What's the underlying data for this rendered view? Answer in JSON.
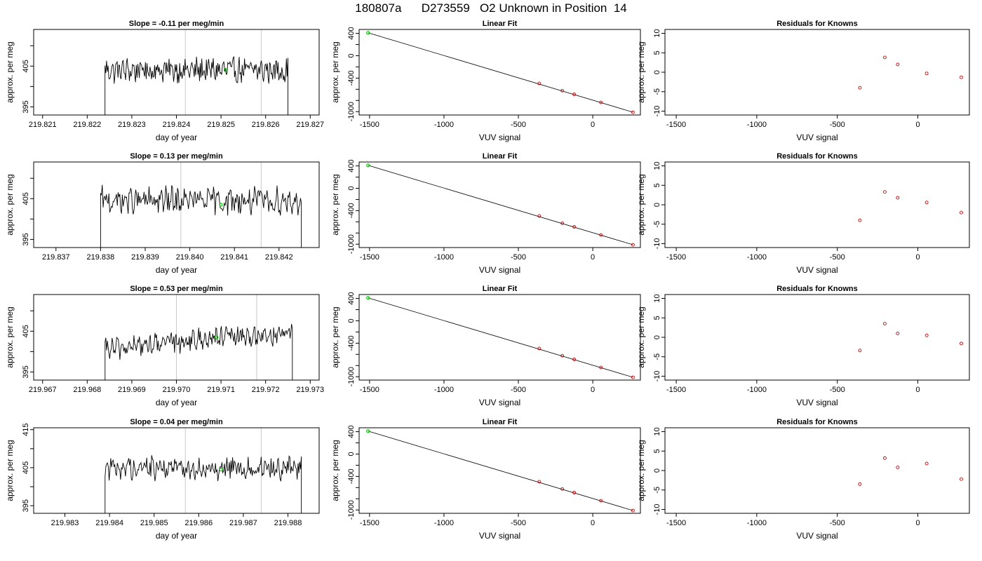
{
  "title": "180807a      D273559   O2 Unknown in Position  14",
  "colors": {
    "trace": "#000000",
    "vline": "#c8c8c8",
    "unknown_point": "#00cc00",
    "known_point": "#cc0000",
    "fit_line": "#000000",
    "frame": "#000000"
  },
  "chart_data": [
    {
      "type": "line",
      "panel": "timeseries",
      "row": 0,
      "title": "Slope =  -0.11  per meg/min",
      "xlabel": "day of year",
      "ylabel": "approx. per meg",
      "xlim": [
        219.8208,
        219.8272
      ],
      "ylim": [
        393,
        414
      ],
      "xticks": [
        219.821,
        219.822,
        219.823,
        219.824,
        219.825,
        219.826,
        219.827
      ],
      "xtick_labels": [
        "219.821",
        "219.822",
        "219.823",
        "219.824",
        "219.825",
        "219.826",
        "219.827"
      ],
      "yticks": [
        395,
        400,
        405,
        410
      ],
      "ytick_labels": [
        "395",
        "",
        "405",
        ""
      ],
      "trace_start": 219.8224,
      "trace_end": 219.8265,
      "trace_mean": 404,
      "trace_amp": 2.6,
      "trace_rise": 0,
      "vlines": [
        219.8242,
        219.8259
      ],
      "unknown_point": {
        "x": 219.8251,
        "y": 404
      }
    },
    {
      "type": "line",
      "panel": "fit",
      "row": 0,
      "title": "Linear Fit",
      "xlabel": "VUV signal",
      "ylabel": "approx. per meg",
      "xlim": [
        -1570,
        320
      ],
      "ylim": [
        -1060,
        470
      ],
      "xticks": [
        -1500,
        -1000,
        -500,
        0
      ],
      "xtick_labels": [
        "-1500",
        "-1000",
        "-500",
        "0"
      ],
      "yticks": [
        400,
        200,
        0,
        -200,
        -400,
        -600,
        -800,
        -1000
      ],
      "ytick_labels": [
        "400",
        "",
        "0",
        "",
        "-400",
        "",
        "",
        "-1000"
      ],
      "fit_line": {
        "x": [
          -1510,
          270
        ],
        "y": [
          410,
          -1010
        ]
      },
      "knowns": {
        "x": [
          -360,
          -205,
          -125,
          55,
          270
        ],
        "y": [
          -495,
          -625,
          -690,
          -835,
          -1010
        ]
      },
      "unknown": {
        "x": -1510,
        "y": 410
      }
    },
    {
      "type": "scatter",
      "panel": "residuals",
      "row": 0,
      "title": "Residuals for Knowns",
      "xlabel": "VUV signal",
      "ylabel": "approx. per meg",
      "xlim": [
        -1570,
        320
      ],
      "ylim": [
        -11,
        11
      ],
      "xticks": [
        -1500,
        -1000,
        -500,
        0
      ],
      "xtick_labels": [
        "-1500",
        "-1000",
        "-500",
        "0"
      ],
      "yticks": [
        -10,
        -5,
        0,
        5,
        10
      ],
      "ytick_labels": [
        "-10",
        "-5",
        "0",
        "5",
        "10"
      ],
      "knowns": {
        "x": [
          -360,
          -205,
          -125,
          55,
          270
        ],
        "y": [
          -4.0,
          3.8,
          2.0,
          -0.3,
          -1.3
        ]
      }
    },
    {
      "type": "line",
      "panel": "timeseries",
      "row": 1,
      "title": "Slope =  0.13  per meg/min",
      "xlabel": "day of year",
      "ylabel": "approx. per meg",
      "xlim": [
        219.8365,
        219.8429
      ],
      "ylim": [
        393,
        414
      ],
      "xticks": [
        219.837,
        219.838,
        219.839,
        219.84,
        219.841,
        219.842
      ],
      "xtick_labels": [
        "219.837",
        "219.838",
        "219.839",
        "219.840",
        "219.841",
        "219.842"
      ],
      "yticks": [
        395,
        400,
        405,
        410
      ],
      "ytick_labels": [
        "395",
        "",
        "405",
        ""
      ],
      "trace_start": 219.838,
      "trace_end": 219.8425,
      "trace_mean": 404.5,
      "trace_amp": 2.8,
      "trace_rise": 0,
      "vlines": [
        219.8398,
        219.8416
      ],
      "unknown_point": {
        "x": 219.8407,
        "y": 403.5
      }
    },
    {
      "type": "line",
      "panel": "fit",
      "row": 1,
      "title": "Linear Fit",
      "xlabel": "VUV signal",
      "ylabel": "approx. per meg",
      "xlim": [
        -1570,
        320
      ],
      "ylim": [
        -1060,
        470
      ],
      "xticks": [
        -1500,
        -1000,
        -500,
        0
      ],
      "xtick_labels": [
        "-1500",
        "-1000",
        "-500",
        "0"
      ],
      "yticks": [
        400,
        200,
        0,
        -200,
        -400,
        -600,
        -800,
        -1000
      ],
      "ytick_labels": [
        "400",
        "",
        "0",
        "",
        "-400",
        "",
        "",
        "-1000"
      ],
      "fit_line": {
        "x": [
          -1510,
          270
        ],
        "y": [
          410,
          -1010
        ]
      },
      "knowns": {
        "x": [
          -360,
          -205,
          -125,
          55,
          270
        ],
        "y": [
          -495,
          -625,
          -690,
          -835,
          -1010
        ]
      },
      "unknown": {
        "x": -1510,
        "y": 410
      }
    },
    {
      "type": "scatter",
      "panel": "residuals",
      "row": 1,
      "title": "Residuals for Knowns",
      "xlabel": "VUV signal",
      "ylabel": "approx. per meg",
      "xlim": [
        -1570,
        320
      ],
      "ylim": [
        -11,
        11
      ],
      "xticks": [
        -1500,
        -1000,
        -500,
        0
      ],
      "xtick_labels": [
        "-1500",
        "-1000",
        "-500",
        "0"
      ],
      "yticks": [
        -10,
        -5,
        0,
        5,
        10
      ],
      "ytick_labels": [
        "-10",
        "-5",
        "0",
        "5",
        "10"
      ],
      "knowns": {
        "x": [
          -360,
          -205,
          -125,
          55,
          270
        ],
        "y": [
          -4.0,
          3.3,
          1.8,
          0.6,
          -2.0
        ]
      }
    },
    {
      "type": "line",
      "panel": "timeseries",
      "row": 2,
      "title": "Slope =  0.53  per meg/min",
      "xlabel": "day of year",
      "ylabel": "approx. per meg",
      "xlim": [
        219.9668,
        219.9732
      ],
      "ylim": [
        393,
        414
      ],
      "xticks": [
        219.967,
        219.968,
        219.969,
        219.97,
        219.971,
        219.972,
        219.973
      ],
      "xtick_labels": [
        "219.967",
        "219.968",
        "219.969",
        "219.970",
        "219.971",
        "219.972",
        "219.973"
      ],
      "yticks": [
        395,
        400,
        405,
        410
      ],
      "ytick_labels": [
        "395",
        "",
        "405",
        ""
      ],
      "trace_start": 219.9684,
      "trace_end": 219.9726,
      "trace_mean": 403,
      "trace_amp": 2.2,
      "trace_rise": 5,
      "vlines": [
        219.97,
        219.9718
      ],
      "unknown_point": {
        "x": 219.9709,
        "y": 403.5
      }
    },
    {
      "type": "line",
      "panel": "fit",
      "row": 2,
      "title": "Linear Fit",
      "xlabel": "VUV signal",
      "ylabel": "approx. per meg",
      "xlim": [
        -1570,
        320
      ],
      "ylim": [
        -1060,
        470
      ],
      "xticks": [
        -1500,
        -1000,
        -500,
        0
      ],
      "xtick_labels": [
        "-1500",
        "-1000",
        "-500",
        "0"
      ],
      "yticks": [
        400,
        200,
        0,
        -200,
        -400,
        -600,
        -800,
        -1000
      ],
      "ytick_labels": [
        "400",
        "",
        "0",
        "",
        "-400",
        "",
        "",
        "-1000"
      ],
      "fit_line": {
        "x": [
          -1510,
          270
        ],
        "y": [
          410,
          -1010
        ]
      },
      "knowns": {
        "x": [
          -360,
          -205,
          -125,
          55,
          270
        ],
        "y": [
          -495,
          -625,
          -690,
          -835,
          -1010
        ]
      },
      "unknown": {
        "x": -1510,
        "y": 410
      }
    },
    {
      "type": "scatter",
      "panel": "residuals",
      "row": 2,
      "title": "Residuals for Knowns",
      "xlabel": "VUV signal",
      "ylabel": "approx. per meg",
      "xlim": [
        -1570,
        320
      ],
      "ylim": [
        -11,
        11
      ],
      "xticks": [
        -1500,
        -1000,
        -500,
        0
      ],
      "xtick_labels": [
        "-1500",
        "-1000",
        "-500",
        "0"
      ],
      "yticks": [
        -10,
        -5,
        0,
        5,
        10
      ],
      "ytick_labels": [
        "-10",
        "-5",
        "0",
        "5",
        "10"
      ],
      "knowns": {
        "x": [
          -360,
          -205,
          -125,
          55,
          270
        ],
        "y": [
          -3.4,
          3.5,
          1.0,
          0.5,
          -1.6
        ]
      }
    },
    {
      "type": "line",
      "panel": "timeseries",
      "row": 3,
      "title": "Slope =  0.04  per meg/min",
      "xlabel": "day of year",
      "ylabel": "approx. per meg",
      "xlim": [
        219.9823,
        219.9887
      ],
      "ylim": [
        393,
        415.5
      ],
      "xticks": [
        219.983,
        219.984,
        219.985,
        219.986,
        219.987,
        219.988
      ],
      "xtick_labels": [
        "219.983",
        "219.984",
        "219.985",
        "219.986",
        "219.987",
        "219.988"
      ],
      "yticks": [
        395,
        400,
        405,
        410,
        415
      ],
      "ytick_labels": [
        "395",
        "",
        "405",
        "",
        "415"
      ],
      "trace_start": 219.9839,
      "trace_end": 219.9883,
      "trace_mean": 405,
      "trace_amp": 2.6,
      "trace_rise": 0,
      "vlines": [
        219.9857,
        219.9874
      ],
      "unknown_point": {
        "x": 219.9865,
        "y": 404.5
      }
    },
    {
      "type": "line",
      "panel": "fit",
      "row": 3,
      "title": "Linear Fit",
      "xlabel": "VUV signal",
      "ylabel": "approx. per meg",
      "xlim": [
        -1570,
        320
      ],
      "ylim": [
        -1060,
        470
      ],
      "xticks": [
        -1500,
        -1000,
        -500,
        0
      ],
      "xtick_labels": [
        "-1500",
        "-1000",
        "-500",
        "0"
      ],
      "yticks": [
        400,
        200,
        0,
        -200,
        -400,
        -600,
        -800,
        -1000
      ],
      "ytick_labels": [
        "400",
        "",
        "0",
        "",
        "-400",
        "",
        "",
        "-1000"
      ],
      "fit_line": {
        "x": [
          -1510,
          270
        ],
        "y": [
          410,
          -1010
        ]
      },
      "knowns": {
        "x": [
          -360,
          -205,
          -125,
          55,
          270
        ],
        "y": [
          -495,
          -625,
          -690,
          -835,
          -1010
        ]
      },
      "unknown": {
        "x": -1510,
        "y": 410
      }
    },
    {
      "type": "scatter",
      "panel": "residuals",
      "row": 3,
      "title": "Residuals for Knowns",
      "xlabel": "VUV signal",
      "ylabel": "approx. per meg",
      "xlim": [
        -1570,
        320
      ],
      "ylim": [
        -11,
        11
      ],
      "xticks": [
        -1500,
        -1000,
        -500,
        0
      ],
      "xtick_labels": [
        "-1500",
        "-1000",
        "-500",
        "0"
      ],
      "yticks": [
        -10,
        -5,
        0,
        5,
        10
      ],
      "ytick_labels": [
        "-10",
        "-5",
        "0",
        "5",
        "10"
      ],
      "knowns": {
        "x": [
          -360,
          -205,
          -125,
          55,
          270
        ],
        "y": [
          -3.5,
          3.2,
          0.8,
          1.8,
          -2.2
        ]
      }
    }
  ]
}
